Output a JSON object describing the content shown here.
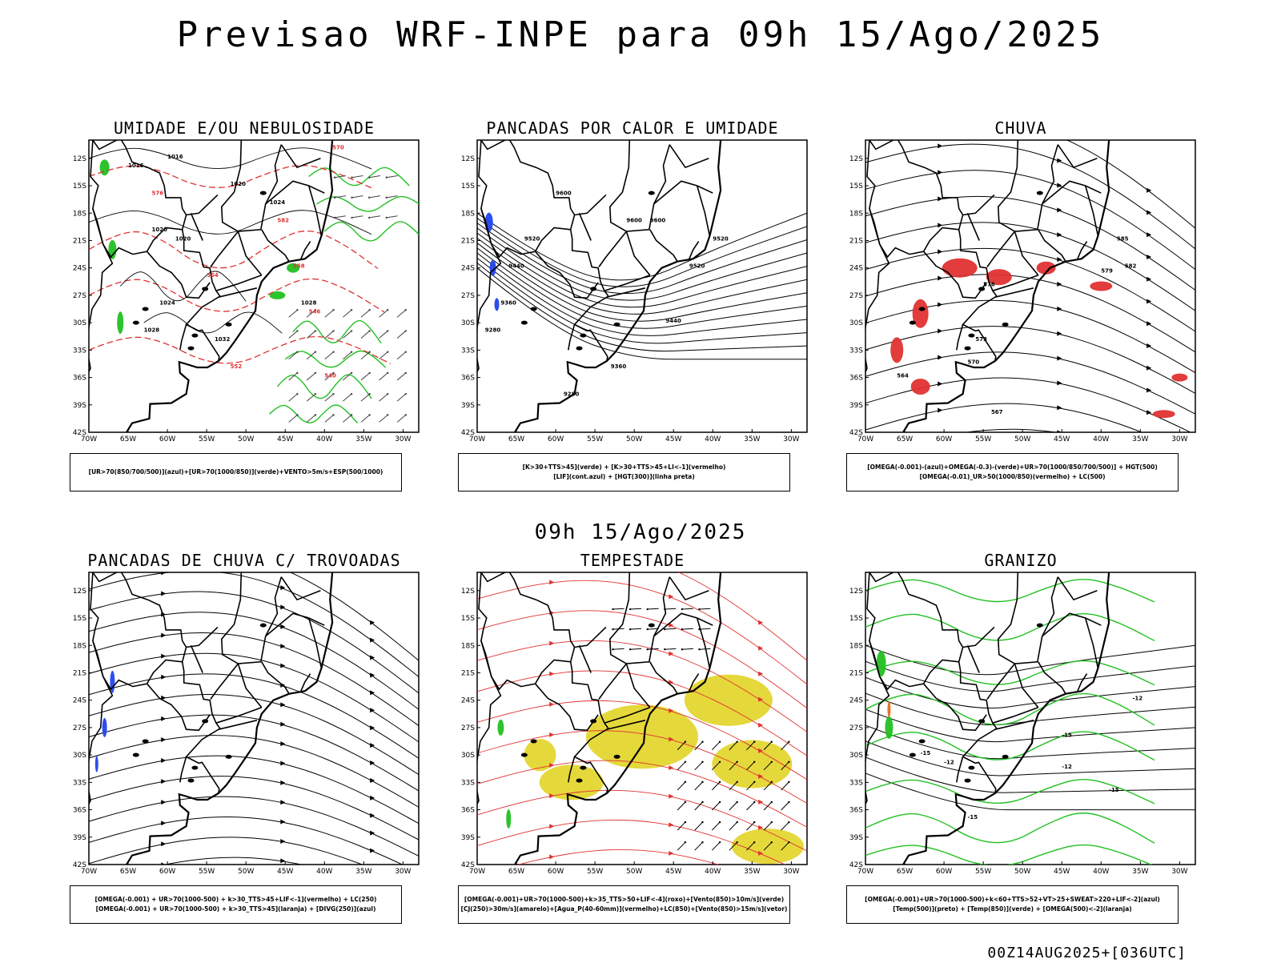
{
  "header": {
    "title": "Previsao WRF-INPE  para 09h 15/Ago/2025",
    "subtitle": "09h 15/Ago/2025",
    "footer": "00Z14AUG2025+[036UTC]"
  },
  "axes": {
    "lat_labels": [
      "12S",
      "15S",
      "18S",
      "21S",
      "24S",
      "27S",
      "30S",
      "33S",
      "36S",
      "39S",
      "42S"
    ],
    "lon_labels": [
      "70W",
      "65W",
      "60W",
      "55W",
      "50W",
      "45W",
      "40W",
      "35W",
      "30W"
    ]
  },
  "colors": {
    "contour": "#000000",
    "red": "#e03131",
    "green": "#22c022",
    "blue": "#2244ee",
    "yellow": "#e4d630",
    "orange": "#e07020",
    "gray": "#777777"
  },
  "panels": [
    {
      "id": "umidade",
      "title": "UMIDADE E/OU NEBULOSIDADE",
      "legend": [
        "[UR>70(850/700/500)](azul)+[UR>70(1000/850)](verde)+VENTO>5m/s+ESP(500/1000)"
      ],
      "contour_labels": [
        "1016",
        "1016",
        "1020",
        "1020",
        "1024",
        "1028",
        "1032",
        "1020",
        "1024",
        "1028",
        "570",
        "576",
        "582",
        "558",
        "564",
        "546",
        "552",
        "540"
      ]
    },
    {
      "id": "pancadas-calor",
      "title": "PANCADAS POR CALOR E UMIDADE",
      "legend": [
        "[K>30+TTS>45](verde) + [K>30+TTS>45+LI<-1](vermelho)",
        "[LIF](cont.azul) + [HGT(300)](linha preta)"
      ],
      "contour_labels": [
        "9600",
        "9600",
        "9520",
        "9520",
        "9440",
        "9520",
        "9440",
        "9360",
        "9280",
        "9360",
        "9280",
        "9600"
      ]
    },
    {
      "id": "chuva",
      "title": "CHUVA",
      "legend": [
        "[OMEGA(-0.001)-(azul)+OMEGA(-0.3)-(verde)+UR>70(1000/850/700/500)] + HGT(500)",
        "[OMEGA(-0.01)_UR>50(1000/850)(vermelho) + LC(500)"
      ],
      "contour_labels": [
        "585",
        "582",
        "579",
        "576",
        "573",
        "570",
        "567",
        "564"
      ]
    },
    {
      "id": "pancadas-trovoadas",
      "title": "PANCADAS DE CHUVA C/ TROVOADAS",
      "legend": [
        "[OMEGA(-0.001) + UR>70(1000-500) + k>30_TTS>45+LIF<-1](vermelho) + LC(250)",
        "[OMEGA(-0.001) + UR>70(1000-500) + k>30_TTS>45](laranja) + [DIVG(250)](azul)"
      ],
      "contour_labels": []
    },
    {
      "id": "tempestade",
      "title": "TEMPESTADE",
      "legend": [
        "[OMEGA(-0.001)+UR>70(1000-500)+k>35_TTS>50+LIF<-4](roxo)+[Vento(850)>10m/s](verde)",
        "[CJ(250)>30m/s](amarelo)+[Agua_P(40-60mm)](vermelho)+LC(850)+[Vento(850)>15m/s](vetor)"
      ],
      "contour_labels": []
    },
    {
      "id": "granizo",
      "title": "GRANIZO",
      "legend": [
        "[OMEGA(-0.001)+UR>70(1000-500)+k<60+TTS>52+VT>25+SWEAT>220+LIF<-2](azul)",
        "[Temp(500)](preto) + [Temp(850)](verde) + [OMEGA(500)<-2](laranja)"
      ],
      "contour_labels": [
        "-12",
        "-15",
        "-15",
        "-12",
        "-15",
        "-12",
        "-15"
      ]
    }
  ]
}
